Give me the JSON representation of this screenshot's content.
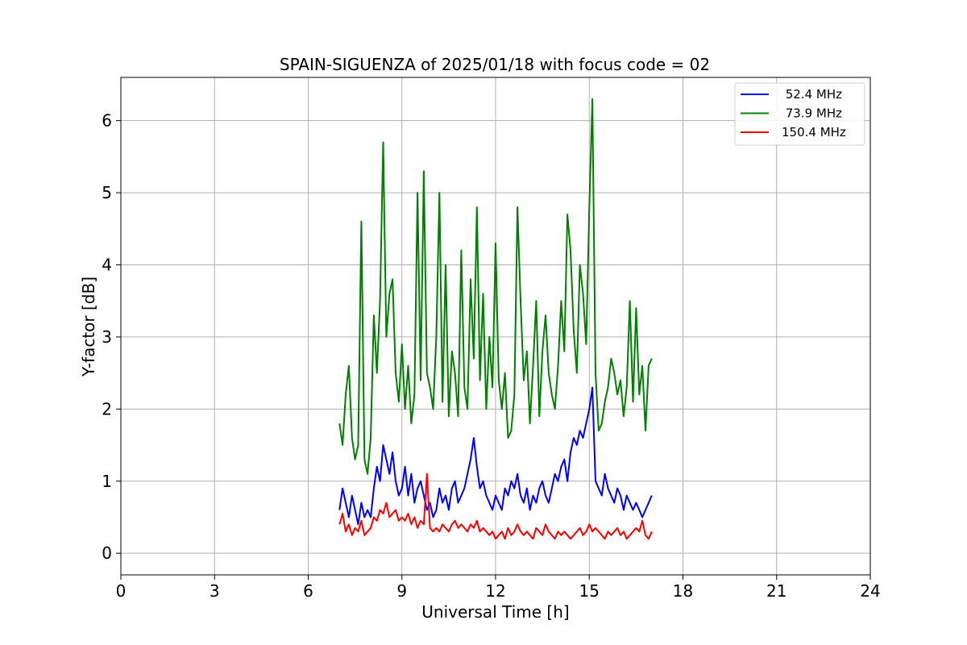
{
  "chart_data": {
    "type": "line",
    "title": "SPAIN-SIGUENZA of 2025/01/18 with focus code = 02",
    "xlabel": "Universal Time [h]",
    "ylabel": "Y-factor [dB]",
    "xlim": [
      0,
      24
    ],
    "ylim": [
      -0.3,
      6.6
    ],
    "xticks": [
      0,
      3,
      6,
      9,
      12,
      15,
      18,
      21,
      24
    ],
    "yticks": [
      0,
      1,
      2,
      3,
      4,
      5,
      6
    ],
    "grid": true,
    "legend_position": "top-right",
    "series": [
      {
        "name": " 52.4 MHz",
        "color": "#0000ff",
        "x": [
          7.0,
          7.1,
          7.2,
          7.3,
          7.4,
          7.5,
          7.6,
          7.7,
          7.8,
          7.9,
          8.0,
          8.1,
          8.2,
          8.3,
          8.4,
          8.5,
          8.6,
          8.7,
          8.8,
          8.9,
          9.0,
          9.1,
          9.2,
          9.3,
          9.4,
          9.5,
          9.6,
          9.7,
          9.8,
          9.9,
          10.0,
          10.1,
          10.2,
          10.3,
          10.4,
          10.5,
          10.6,
          10.7,
          10.8,
          10.9,
          11.0,
          11.1,
          11.2,
          11.3,
          11.4,
          11.5,
          11.6,
          11.7,
          11.8,
          11.9,
          12.0,
          12.1,
          12.2,
          12.3,
          12.4,
          12.5,
          12.6,
          12.7,
          12.8,
          12.9,
          13.0,
          13.1,
          13.2,
          13.3,
          13.4,
          13.5,
          13.6,
          13.7,
          13.8,
          13.9,
          14.0,
          14.1,
          14.2,
          14.3,
          14.4,
          14.5,
          14.6,
          14.7,
          14.8,
          14.9,
          15.0,
          15.1,
          15.2,
          15.3,
          15.4,
          15.5,
          15.6,
          15.7,
          15.8,
          15.9,
          16.0,
          16.1,
          16.2,
          16.3,
          16.4,
          16.5,
          16.6,
          16.7,
          16.8,
          16.9,
          17.0
        ],
        "y": [
          0.6,
          0.9,
          0.7,
          0.5,
          0.8,
          0.6,
          0.4,
          0.7,
          0.5,
          0.6,
          0.5,
          0.9,
          1.2,
          1.0,
          1.5,
          1.3,
          1.1,
          1.4,
          1.0,
          0.8,
          0.9,
          1.2,
          0.8,
          1.1,
          0.7,
          0.9,
          1.0,
          0.8,
          0.6,
          0.7,
          0.5,
          0.6,
          0.9,
          0.7,
          0.8,
          0.6,
          0.9,
          1.0,
          0.7,
          0.8,
          0.9,
          1.1,
          1.3,
          1.6,
          1.2,
          0.9,
          1.0,
          0.8,
          0.7,
          0.6,
          0.8,
          0.7,
          0.6,
          0.9,
          0.8,
          1.0,
          0.9,
          1.1,
          0.8,
          0.7,
          0.9,
          0.6,
          0.8,
          0.7,
          0.9,
          1.0,
          0.8,
          0.7,
          0.9,
          1.1,
          1.0,
          1.2,
          1.3,
          1.0,
          1.4,
          1.6,
          1.5,
          1.7,
          1.6,
          1.8,
          2.0,
          2.3,
          1.0,
          0.9,
          0.8,
          1.1,
          0.9,
          0.8,
          0.7,
          0.9,
          0.8,
          0.6,
          0.8,
          0.7,
          0.6,
          0.7,
          0.6,
          0.5,
          0.6,
          0.7,
          0.8
        ]
      },
      {
        "name": " 73.9 MHz",
        "color": "#008000",
        "x": [
          7.0,
          7.1,
          7.2,
          7.3,
          7.4,
          7.5,
          7.6,
          7.7,
          7.8,
          7.9,
          8.0,
          8.1,
          8.2,
          8.3,
          8.4,
          8.5,
          8.6,
          8.7,
          8.8,
          8.9,
          9.0,
          9.1,
          9.2,
          9.3,
          9.4,
          9.5,
          9.6,
          9.7,
          9.8,
          9.9,
          10.0,
          10.1,
          10.2,
          10.3,
          10.4,
          10.5,
          10.6,
          10.7,
          10.8,
          10.9,
          11.0,
          11.1,
          11.2,
          11.3,
          11.4,
          11.5,
          11.6,
          11.7,
          11.8,
          11.9,
          12.0,
          12.1,
          12.2,
          12.3,
          12.4,
          12.5,
          12.6,
          12.7,
          12.8,
          12.9,
          13.0,
          13.1,
          13.2,
          13.3,
          13.4,
          13.5,
          13.6,
          13.7,
          13.8,
          13.9,
          14.0,
          14.1,
          14.2,
          14.3,
          14.4,
          14.5,
          14.6,
          14.7,
          14.8,
          14.9,
          15.0,
          15.1,
          15.2,
          15.3,
          15.4,
          15.5,
          15.6,
          15.7,
          15.8,
          15.9,
          16.0,
          16.1,
          16.2,
          16.3,
          16.4,
          16.5,
          16.6,
          16.7,
          16.8,
          16.9,
          17.0
        ],
        "y": [
          1.8,
          1.5,
          2.2,
          2.6,
          1.6,
          1.3,
          1.5,
          4.6,
          1.3,
          1.1,
          1.6,
          3.3,
          2.5,
          3.5,
          5.7,
          3.0,
          3.6,
          3.8,
          2.5,
          2.1,
          2.9,
          2.0,
          2.6,
          1.8,
          2.2,
          5.0,
          2.4,
          5.3,
          2.5,
          2.3,
          2.0,
          3.0,
          5.0,
          2.1,
          4.0,
          1.9,
          2.8,
          2.5,
          1.9,
          4.2,
          2.3,
          2.0,
          3.8,
          2.7,
          4.8,
          2.4,
          3.6,
          2.0,
          3.0,
          2.3,
          4.3,
          2.4,
          2.0,
          2.5,
          1.6,
          1.7,
          2.2,
          4.8,
          3.5,
          2.4,
          2.8,
          1.8,
          2.6,
          3.5,
          1.9,
          2.8,
          3.3,
          2.5,
          2.2,
          2.0,
          2.6,
          3.5,
          2.8,
          4.7,
          4.2,
          3.1,
          2.5,
          4.0,
          3.6,
          2.9,
          4.8,
          6.3,
          2.5,
          1.7,
          1.8,
          2.1,
          2.3,
          2.7,
          2.5,
          2.2,
          2.4,
          1.9,
          2.3,
          3.5,
          2.1,
          3.4,
          2.2,
          2.6,
          1.7,
          2.6,
          2.7
        ]
      },
      {
        "name": "150.4 MHz",
        "color": "#ff0000",
        "x": [
          7.0,
          7.1,
          7.2,
          7.3,
          7.4,
          7.5,
          7.6,
          7.7,
          7.8,
          7.9,
          8.0,
          8.1,
          8.2,
          8.3,
          8.4,
          8.5,
          8.6,
          8.7,
          8.8,
          8.9,
          9.0,
          9.1,
          9.2,
          9.3,
          9.4,
          9.5,
          9.6,
          9.7,
          9.8,
          9.9,
          10.0,
          10.1,
          10.2,
          10.3,
          10.4,
          10.5,
          10.6,
          10.7,
          10.8,
          10.9,
          11.0,
          11.1,
          11.2,
          11.3,
          11.4,
          11.5,
          11.6,
          11.7,
          11.8,
          11.9,
          12.0,
          12.1,
          12.2,
          12.3,
          12.4,
          12.5,
          12.6,
          12.7,
          12.8,
          12.9,
          13.0,
          13.1,
          13.2,
          13.3,
          13.4,
          13.5,
          13.6,
          13.7,
          13.8,
          13.9,
          14.0,
          14.1,
          14.2,
          14.3,
          14.4,
          14.5,
          14.6,
          14.7,
          14.8,
          14.9,
          15.0,
          15.1,
          15.2,
          15.3,
          15.4,
          15.5,
          15.6,
          15.7,
          15.8,
          15.9,
          16.0,
          16.1,
          16.2,
          16.3,
          16.4,
          16.5,
          16.6,
          16.7,
          16.8,
          16.9,
          17.0
        ],
        "y": [
          0.4,
          0.55,
          0.3,
          0.4,
          0.25,
          0.35,
          0.3,
          0.45,
          0.25,
          0.3,
          0.35,
          0.5,
          0.45,
          0.6,
          0.55,
          0.7,
          0.5,
          0.55,
          0.6,
          0.45,
          0.5,
          0.45,
          0.55,
          0.4,
          0.5,
          0.35,
          0.45,
          0.4,
          1.1,
          0.35,
          0.3,
          0.35,
          0.3,
          0.4,
          0.35,
          0.3,
          0.4,
          0.45,
          0.35,
          0.4,
          0.35,
          0.3,
          0.4,
          0.35,
          0.45,
          0.3,
          0.35,
          0.3,
          0.25,
          0.3,
          0.2,
          0.25,
          0.3,
          0.2,
          0.35,
          0.25,
          0.3,
          0.4,
          0.3,
          0.25,
          0.3,
          0.25,
          0.2,
          0.35,
          0.3,
          0.25,
          0.4,
          0.3,
          0.25,
          0.2,
          0.3,
          0.25,
          0.3,
          0.25,
          0.2,
          0.25,
          0.3,
          0.35,
          0.25,
          0.3,
          0.4,
          0.3,
          0.35,
          0.3,
          0.25,
          0.2,
          0.3,
          0.25,
          0.3,
          0.35,
          0.25,
          0.3,
          0.2,
          0.25,
          0.3,
          0.35,
          0.3,
          0.45,
          0.25,
          0.2,
          0.3
        ]
      }
    ]
  }
}
